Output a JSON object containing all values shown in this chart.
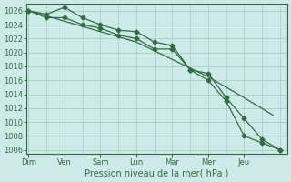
{
  "background_color": "#ceeae8",
  "grid_color": "#aaceca",
  "line_color": "#2d6e3e",
  "x_labels": [
    "Dim",
    "Ven",
    "Sam",
    "Lun",
    "Mar",
    "Mer",
    "Jeu"
  ],
  "x_tick_positions": [
    0,
    1,
    2,
    3,
    4,
    5,
    6
  ],
  "xlabel": "Pression niveau de la mer( hPa )",
  "ylim": [
    1005.5,
    1027
  ],
  "yticks": [
    1006,
    1008,
    1010,
    1012,
    1014,
    1016,
    1018,
    1020,
    1022,
    1024,
    1026
  ],
  "xlim": [
    -0.05,
    7.2
  ],
  "line1_x": [
    0.0,
    1.0,
    2.0,
    3.0,
    4.0,
    5.0,
    6.0,
    6.8
  ],
  "line1_y": [
    1026.0,
    1024.5,
    1023.0,
    1021.5,
    1019.0,
    1016.5,
    1013.5,
    1011.0
  ],
  "line2_x": [
    0.0,
    0.5,
    1.0,
    1.5,
    2.0,
    2.5,
    3.0,
    3.5,
    4.0,
    4.5,
    5.0,
    5.5,
    6.0,
    6.5,
    7.0
  ],
  "line2_y": [
    1026.0,
    1025.5,
    1026.5,
    1025.0,
    1024.0,
    1023.2,
    1023.0,
    1021.5,
    1021.0,
    1017.5,
    1017.0,
    1013.5,
    1010.5,
    1007.5,
    1006.0
  ],
  "line3_x": [
    0.0,
    0.5,
    1.0,
    1.5,
    2.0,
    2.5,
    3.0,
    3.5,
    4.0,
    4.5,
    5.0,
    5.5,
    6.0,
    6.5,
    7.0
  ],
  "line3_y": [
    1026.0,
    1025.0,
    1025.0,
    1024.0,
    1023.5,
    1022.5,
    1022.0,
    1020.5,
    1020.5,
    1017.5,
    1016.0,
    1013.0,
    1008.0,
    1007.0,
    1006.0
  ]
}
